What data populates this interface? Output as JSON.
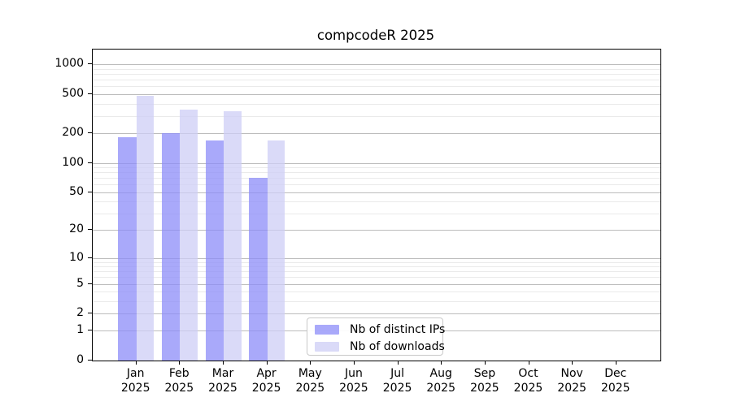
{
  "chart_data": {
    "type": "bar",
    "title": "compcodeR 2025",
    "year_label": "2025",
    "categories": [
      "Jan",
      "Feb",
      "Mar",
      "Apr",
      "May",
      "Jun",
      "Jul",
      "Aug",
      "Sep",
      "Oct",
      "Nov",
      "Dec"
    ],
    "series": [
      {
        "name": "Nb of distinct IPs",
        "color": "rgba(140,140,248,0.75)",
        "color_hex_on_white": "#a9a9f4",
        "values": [
          182,
          200,
          170,
          70,
          null,
          null,
          null,
          null,
          null,
          null,
          null,
          null
        ]
      },
      {
        "name": "Nb of downloads",
        "color": "rgba(205,205,246,0.75)",
        "color_hex_on_white": "#dadaf8",
        "values": [
          485,
          350,
          335,
          170,
          null,
          null,
          null,
          null,
          null,
          null,
          null,
          null
        ]
      }
    ],
    "y_axis": {
      "scale": "log1p",
      "ticks": [
        0,
        1,
        2,
        5,
        10,
        20,
        50,
        100,
        200,
        500,
        1000
      ],
      "minor_ticks": [
        3,
        4,
        6,
        7,
        8,
        9,
        30,
        40,
        60,
        70,
        80,
        90,
        300,
        400,
        600,
        700,
        800,
        900
      ],
      "range": [
        0,
        1400
      ]
    },
    "x_axis": {
      "label_line_2": "2025"
    },
    "legend": {
      "position": "inside-bottom-center",
      "entries": [
        "Nb of distinct IPs",
        "Nb of downloads"
      ]
    },
    "grid": {
      "major_color": "#bcbcbc",
      "minor_color": "#eaeaea",
      "visible": true
    }
  }
}
